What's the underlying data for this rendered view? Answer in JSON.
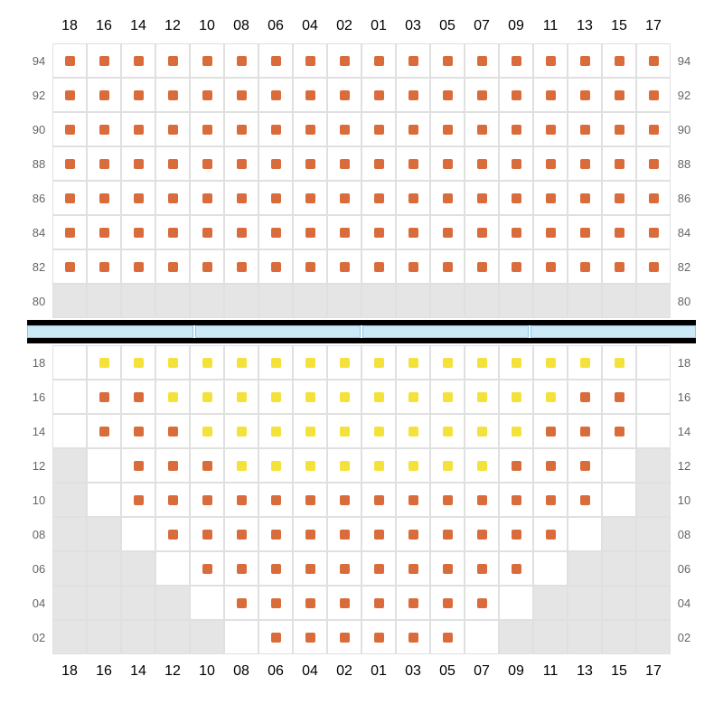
{
  "colors": {
    "seat_orange": "#d96c3a",
    "seat_yellow": "#f4e23b",
    "grey_cell": "#e5e5e5",
    "grid_border": "#e0e0e0",
    "label_text": "#666666",
    "divider": "#000000",
    "blue_fill": "#cce9f7",
    "blue_border": "#88c8e8",
    "background": "#ffffff"
  },
  "layout": {
    "cell_size": 38,
    "seat_size": 11,
    "cols": 18,
    "label_fontsize": 13
  },
  "column_headers": [
    "18",
    "16",
    "14",
    "12",
    "10",
    "08",
    "06",
    "04",
    "02",
    "01",
    "03",
    "05",
    "07",
    "09",
    "11",
    "13",
    "15",
    "17"
  ],
  "upper": {
    "row_labels": [
      "94",
      "92",
      "90",
      "88",
      "86",
      "84",
      "82",
      "80"
    ],
    "rows": [
      {
        "label": "94",
        "cells": [
          {
            "t": "o"
          },
          {
            "t": "o"
          },
          {
            "t": "o"
          },
          {
            "t": "o"
          },
          {
            "t": "o"
          },
          {
            "t": "o"
          },
          {
            "t": "o"
          },
          {
            "t": "o"
          },
          {
            "t": "o"
          },
          {
            "t": "o"
          },
          {
            "t": "o"
          },
          {
            "t": "o"
          },
          {
            "t": "o"
          },
          {
            "t": "o"
          },
          {
            "t": "o"
          },
          {
            "t": "o"
          },
          {
            "t": "o"
          },
          {
            "t": "o"
          }
        ]
      },
      {
        "label": "92",
        "cells": [
          {
            "t": "o"
          },
          {
            "t": "o"
          },
          {
            "t": "o"
          },
          {
            "t": "o"
          },
          {
            "t": "o"
          },
          {
            "t": "o"
          },
          {
            "t": "o"
          },
          {
            "t": "o"
          },
          {
            "t": "o"
          },
          {
            "t": "o"
          },
          {
            "t": "o"
          },
          {
            "t": "o"
          },
          {
            "t": "o"
          },
          {
            "t": "o"
          },
          {
            "t": "o"
          },
          {
            "t": "o"
          },
          {
            "t": "o"
          },
          {
            "t": "o"
          }
        ]
      },
      {
        "label": "90",
        "cells": [
          {
            "t": "o"
          },
          {
            "t": "o"
          },
          {
            "t": "o"
          },
          {
            "t": "o"
          },
          {
            "t": "o"
          },
          {
            "t": "o"
          },
          {
            "t": "o"
          },
          {
            "t": "o"
          },
          {
            "t": "o"
          },
          {
            "t": "o"
          },
          {
            "t": "o"
          },
          {
            "t": "o"
          },
          {
            "t": "o"
          },
          {
            "t": "o"
          },
          {
            "t": "o"
          },
          {
            "t": "o"
          },
          {
            "t": "o"
          },
          {
            "t": "o"
          }
        ]
      },
      {
        "label": "88",
        "cells": [
          {
            "t": "o"
          },
          {
            "t": "o"
          },
          {
            "t": "o"
          },
          {
            "t": "o"
          },
          {
            "t": "o"
          },
          {
            "t": "o"
          },
          {
            "t": "o"
          },
          {
            "t": "o"
          },
          {
            "t": "o"
          },
          {
            "t": "o"
          },
          {
            "t": "o"
          },
          {
            "t": "o"
          },
          {
            "t": "o"
          },
          {
            "t": "o"
          },
          {
            "t": "o"
          },
          {
            "t": "o"
          },
          {
            "t": "o"
          },
          {
            "t": "o"
          }
        ]
      },
      {
        "label": "86",
        "cells": [
          {
            "t": "o"
          },
          {
            "t": "o"
          },
          {
            "t": "o"
          },
          {
            "t": "o"
          },
          {
            "t": "o"
          },
          {
            "t": "o"
          },
          {
            "t": "o"
          },
          {
            "t": "o"
          },
          {
            "t": "o"
          },
          {
            "t": "o"
          },
          {
            "t": "o"
          },
          {
            "t": "o"
          },
          {
            "t": "o"
          },
          {
            "t": "o"
          },
          {
            "t": "o"
          },
          {
            "t": "o"
          },
          {
            "t": "o"
          },
          {
            "t": "o"
          }
        ]
      },
      {
        "label": "84",
        "cells": [
          {
            "t": "o"
          },
          {
            "t": "o"
          },
          {
            "t": "o"
          },
          {
            "t": "o"
          },
          {
            "t": "o"
          },
          {
            "t": "o"
          },
          {
            "t": "o"
          },
          {
            "t": "o"
          },
          {
            "t": "o"
          },
          {
            "t": "o"
          },
          {
            "t": "o"
          },
          {
            "t": "o"
          },
          {
            "t": "o"
          },
          {
            "t": "o"
          },
          {
            "t": "o"
          },
          {
            "t": "o"
          },
          {
            "t": "o"
          },
          {
            "t": "o"
          }
        ]
      },
      {
        "label": "82",
        "cells": [
          {
            "t": "o"
          },
          {
            "t": "o"
          },
          {
            "t": "o"
          },
          {
            "t": "o"
          },
          {
            "t": "o"
          },
          {
            "t": "o"
          },
          {
            "t": "o"
          },
          {
            "t": "o"
          },
          {
            "t": "o"
          },
          {
            "t": "o"
          },
          {
            "t": "o"
          },
          {
            "t": "o"
          },
          {
            "t": "o"
          },
          {
            "t": "o"
          },
          {
            "t": "o"
          },
          {
            "t": "o"
          },
          {
            "t": "o"
          },
          {
            "t": "o"
          }
        ]
      },
      {
        "label": "80",
        "cells": [
          {
            "t": "g"
          },
          {
            "t": "g"
          },
          {
            "t": "g"
          },
          {
            "t": "g"
          },
          {
            "t": "g"
          },
          {
            "t": "g"
          },
          {
            "t": "g"
          },
          {
            "t": "g"
          },
          {
            "t": "g"
          },
          {
            "t": "g"
          },
          {
            "t": "g"
          },
          {
            "t": "g"
          },
          {
            "t": "g"
          },
          {
            "t": "g"
          },
          {
            "t": "g"
          },
          {
            "t": "g"
          },
          {
            "t": "g"
          },
          {
            "t": "g"
          }
        ]
      }
    ]
  },
  "blue_segments": 4,
  "lower": {
    "row_labels": [
      "18",
      "16",
      "14",
      "12",
      "10",
      "08",
      "06",
      "04",
      "02"
    ],
    "rows": [
      {
        "label": "18",
        "cells": [
          {
            "t": "e"
          },
          {
            "t": "y"
          },
          {
            "t": "y"
          },
          {
            "t": "y"
          },
          {
            "t": "y"
          },
          {
            "t": "y"
          },
          {
            "t": "y"
          },
          {
            "t": "y"
          },
          {
            "t": "y"
          },
          {
            "t": "y"
          },
          {
            "t": "y"
          },
          {
            "t": "y"
          },
          {
            "t": "y"
          },
          {
            "t": "y"
          },
          {
            "t": "y"
          },
          {
            "t": "y"
          },
          {
            "t": "y"
          },
          {
            "t": "e"
          }
        ]
      },
      {
        "label": "16",
        "cells": [
          {
            "t": "e"
          },
          {
            "t": "o"
          },
          {
            "t": "o"
          },
          {
            "t": "y"
          },
          {
            "t": "y"
          },
          {
            "t": "y"
          },
          {
            "t": "y"
          },
          {
            "t": "y"
          },
          {
            "t": "y"
          },
          {
            "t": "y"
          },
          {
            "t": "y"
          },
          {
            "t": "y"
          },
          {
            "t": "y"
          },
          {
            "t": "y"
          },
          {
            "t": "y"
          },
          {
            "t": "o"
          },
          {
            "t": "o"
          },
          {
            "t": "e"
          }
        ]
      },
      {
        "label": "14",
        "cells": [
          {
            "t": "e"
          },
          {
            "t": "o"
          },
          {
            "t": "o"
          },
          {
            "t": "o"
          },
          {
            "t": "y"
          },
          {
            "t": "y"
          },
          {
            "t": "y"
          },
          {
            "t": "y"
          },
          {
            "t": "y"
          },
          {
            "t": "y"
          },
          {
            "t": "y"
          },
          {
            "t": "y"
          },
          {
            "t": "y"
          },
          {
            "t": "y"
          },
          {
            "t": "o"
          },
          {
            "t": "o"
          },
          {
            "t": "o"
          },
          {
            "t": "e"
          }
        ]
      },
      {
        "label": "12",
        "cells": [
          {
            "t": "g"
          },
          {
            "t": "e"
          },
          {
            "t": "o"
          },
          {
            "t": "o"
          },
          {
            "t": "o"
          },
          {
            "t": "y"
          },
          {
            "t": "y"
          },
          {
            "t": "y"
          },
          {
            "t": "y"
          },
          {
            "t": "y"
          },
          {
            "t": "y"
          },
          {
            "t": "y"
          },
          {
            "t": "y"
          },
          {
            "t": "o"
          },
          {
            "t": "o"
          },
          {
            "t": "o"
          },
          {
            "t": "e"
          },
          {
            "t": "g"
          }
        ]
      },
      {
        "label": "10",
        "cells": [
          {
            "t": "g"
          },
          {
            "t": "e"
          },
          {
            "t": "o"
          },
          {
            "t": "o"
          },
          {
            "t": "o"
          },
          {
            "t": "o"
          },
          {
            "t": "o"
          },
          {
            "t": "o"
          },
          {
            "t": "o"
          },
          {
            "t": "o"
          },
          {
            "t": "o"
          },
          {
            "t": "o"
          },
          {
            "t": "o"
          },
          {
            "t": "o"
          },
          {
            "t": "o"
          },
          {
            "t": "o"
          },
          {
            "t": "e"
          },
          {
            "t": "g"
          }
        ]
      },
      {
        "label": "08",
        "cells": [
          {
            "t": "g"
          },
          {
            "t": "g"
          },
          {
            "t": "e"
          },
          {
            "t": "o"
          },
          {
            "t": "o"
          },
          {
            "t": "o"
          },
          {
            "t": "o"
          },
          {
            "t": "o"
          },
          {
            "t": "o"
          },
          {
            "t": "o"
          },
          {
            "t": "o"
          },
          {
            "t": "o"
          },
          {
            "t": "o"
          },
          {
            "t": "o"
          },
          {
            "t": "o"
          },
          {
            "t": "e"
          },
          {
            "t": "g"
          },
          {
            "t": "g"
          }
        ]
      },
      {
        "label": "06",
        "cells": [
          {
            "t": "g"
          },
          {
            "t": "g"
          },
          {
            "t": "g"
          },
          {
            "t": "e"
          },
          {
            "t": "o"
          },
          {
            "t": "o"
          },
          {
            "t": "o"
          },
          {
            "t": "o"
          },
          {
            "t": "o"
          },
          {
            "t": "o"
          },
          {
            "t": "o"
          },
          {
            "t": "o"
          },
          {
            "t": "o"
          },
          {
            "t": "o"
          },
          {
            "t": "e"
          },
          {
            "t": "g"
          },
          {
            "t": "g"
          },
          {
            "t": "g"
          }
        ]
      },
      {
        "label": "04",
        "cells": [
          {
            "t": "g"
          },
          {
            "t": "g"
          },
          {
            "t": "g"
          },
          {
            "t": "g"
          },
          {
            "t": "e"
          },
          {
            "t": "o"
          },
          {
            "t": "o"
          },
          {
            "t": "o"
          },
          {
            "t": "o"
          },
          {
            "t": "o"
          },
          {
            "t": "o"
          },
          {
            "t": "o"
          },
          {
            "t": "o"
          },
          {
            "t": "e"
          },
          {
            "t": "g"
          },
          {
            "t": "g"
          },
          {
            "t": "g"
          },
          {
            "t": "g"
          }
        ]
      },
      {
        "label": "02",
        "cells": [
          {
            "t": "g"
          },
          {
            "t": "g"
          },
          {
            "t": "g"
          },
          {
            "t": "g"
          },
          {
            "t": "g"
          },
          {
            "t": "e"
          },
          {
            "t": "o"
          },
          {
            "t": "o"
          },
          {
            "t": "o"
          },
          {
            "t": "o"
          },
          {
            "t": "o"
          },
          {
            "t": "o"
          },
          {
            "t": "e"
          },
          {
            "t": "g"
          },
          {
            "t": "g"
          },
          {
            "t": "g"
          },
          {
            "t": "g"
          },
          {
            "t": "g"
          }
        ]
      }
    ]
  }
}
